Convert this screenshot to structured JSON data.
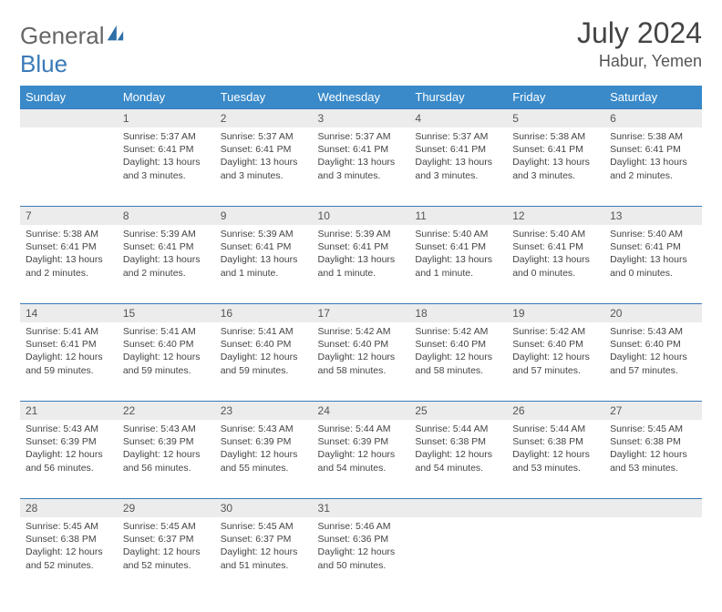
{
  "logo": {
    "part1": "General",
    "part2": "Blue"
  },
  "title": {
    "month": "July 2024",
    "location": "Habur, Yemen"
  },
  "weekdays": [
    "Sunday",
    "Monday",
    "Tuesday",
    "Wednesday",
    "Thursday",
    "Friday",
    "Saturday"
  ],
  "colors": {
    "headerBg": "#3a8ac9",
    "headerFg": "#ffffff",
    "dayRowBg": "#ececec",
    "rule": "#3a7ab8"
  },
  "weeks": [
    [
      {
        "n": "",
        "d": ""
      },
      {
        "n": "1",
        "d": "Sunrise: 5:37 AM\nSunset: 6:41 PM\nDaylight: 13 hours and 3 minutes."
      },
      {
        "n": "2",
        "d": "Sunrise: 5:37 AM\nSunset: 6:41 PM\nDaylight: 13 hours and 3 minutes."
      },
      {
        "n": "3",
        "d": "Sunrise: 5:37 AM\nSunset: 6:41 PM\nDaylight: 13 hours and 3 minutes."
      },
      {
        "n": "4",
        "d": "Sunrise: 5:37 AM\nSunset: 6:41 PM\nDaylight: 13 hours and 3 minutes."
      },
      {
        "n": "5",
        "d": "Sunrise: 5:38 AM\nSunset: 6:41 PM\nDaylight: 13 hours and 3 minutes."
      },
      {
        "n": "6",
        "d": "Sunrise: 5:38 AM\nSunset: 6:41 PM\nDaylight: 13 hours and 2 minutes."
      }
    ],
    [
      {
        "n": "7",
        "d": "Sunrise: 5:38 AM\nSunset: 6:41 PM\nDaylight: 13 hours and 2 minutes."
      },
      {
        "n": "8",
        "d": "Sunrise: 5:39 AM\nSunset: 6:41 PM\nDaylight: 13 hours and 2 minutes."
      },
      {
        "n": "9",
        "d": "Sunrise: 5:39 AM\nSunset: 6:41 PM\nDaylight: 13 hours and 1 minute."
      },
      {
        "n": "10",
        "d": "Sunrise: 5:39 AM\nSunset: 6:41 PM\nDaylight: 13 hours and 1 minute."
      },
      {
        "n": "11",
        "d": "Sunrise: 5:40 AM\nSunset: 6:41 PM\nDaylight: 13 hours and 1 minute."
      },
      {
        "n": "12",
        "d": "Sunrise: 5:40 AM\nSunset: 6:41 PM\nDaylight: 13 hours and 0 minutes."
      },
      {
        "n": "13",
        "d": "Sunrise: 5:40 AM\nSunset: 6:41 PM\nDaylight: 13 hours and 0 minutes."
      }
    ],
    [
      {
        "n": "14",
        "d": "Sunrise: 5:41 AM\nSunset: 6:41 PM\nDaylight: 12 hours and 59 minutes."
      },
      {
        "n": "15",
        "d": "Sunrise: 5:41 AM\nSunset: 6:40 PM\nDaylight: 12 hours and 59 minutes."
      },
      {
        "n": "16",
        "d": "Sunrise: 5:41 AM\nSunset: 6:40 PM\nDaylight: 12 hours and 59 minutes."
      },
      {
        "n": "17",
        "d": "Sunrise: 5:42 AM\nSunset: 6:40 PM\nDaylight: 12 hours and 58 minutes."
      },
      {
        "n": "18",
        "d": "Sunrise: 5:42 AM\nSunset: 6:40 PM\nDaylight: 12 hours and 58 minutes."
      },
      {
        "n": "19",
        "d": "Sunrise: 5:42 AM\nSunset: 6:40 PM\nDaylight: 12 hours and 57 minutes."
      },
      {
        "n": "20",
        "d": "Sunrise: 5:43 AM\nSunset: 6:40 PM\nDaylight: 12 hours and 57 minutes."
      }
    ],
    [
      {
        "n": "21",
        "d": "Sunrise: 5:43 AM\nSunset: 6:39 PM\nDaylight: 12 hours and 56 minutes."
      },
      {
        "n": "22",
        "d": "Sunrise: 5:43 AM\nSunset: 6:39 PM\nDaylight: 12 hours and 56 minutes."
      },
      {
        "n": "23",
        "d": "Sunrise: 5:43 AM\nSunset: 6:39 PM\nDaylight: 12 hours and 55 minutes."
      },
      {
        "n": "24",
        "d": "Sunrise: 5:44 AM\nSunset: 6:39 PM\nDaylight: 12 hours and 54 minutes."
      },
      {
        "n": "25",
        "d": "Sunrise: 5:44 AM\nSunset: 6:38 PM\nDaylight: 12 hours and 54 minutes."
      },
      {
        "n": "26",
        "d": "Sunrise: 5:44 AM\nSunset: 6:38 PM\nDaylight: 12 hours and 53 minutes."
      },
      {
        "n": "27",
        "d": "Sunrise: 5:45 AM\nSunset: 6:38 PM\nDaylight: 12 hours and 53 minutes."
      }
    ],
    [
      {
        "n": "28",
        "d": "Sunrise: 5:45 AM\nSunset: 6:38 PM\nDaylight: 12 hours and 52 minutes."
      },
      {
        "n": "29",
        "d": "Sunrise: 5:45 AM\nSunset: 6:37 PM\nDaylight: 12 hours and 52 minutes."
      },
      {
        "n": "30",
        "d": "Sunrise: 5:45 AM\nSunset: 6:37 PM\nDaylight: 12 hours and 51 minutes."
      },
      {
        "n": "31",
        "d": "Sunrise: 5:46 AM\nSunset: 6:36 PM\nDaylight: 12 hours and 50 minutes."
      },
      {
        "n": "",
        "d": ""
      },
      {
        "n": "",
        "d": ""
      },
      {
        "n": "",
        "d": ""
      }
    ]
  ]
}
